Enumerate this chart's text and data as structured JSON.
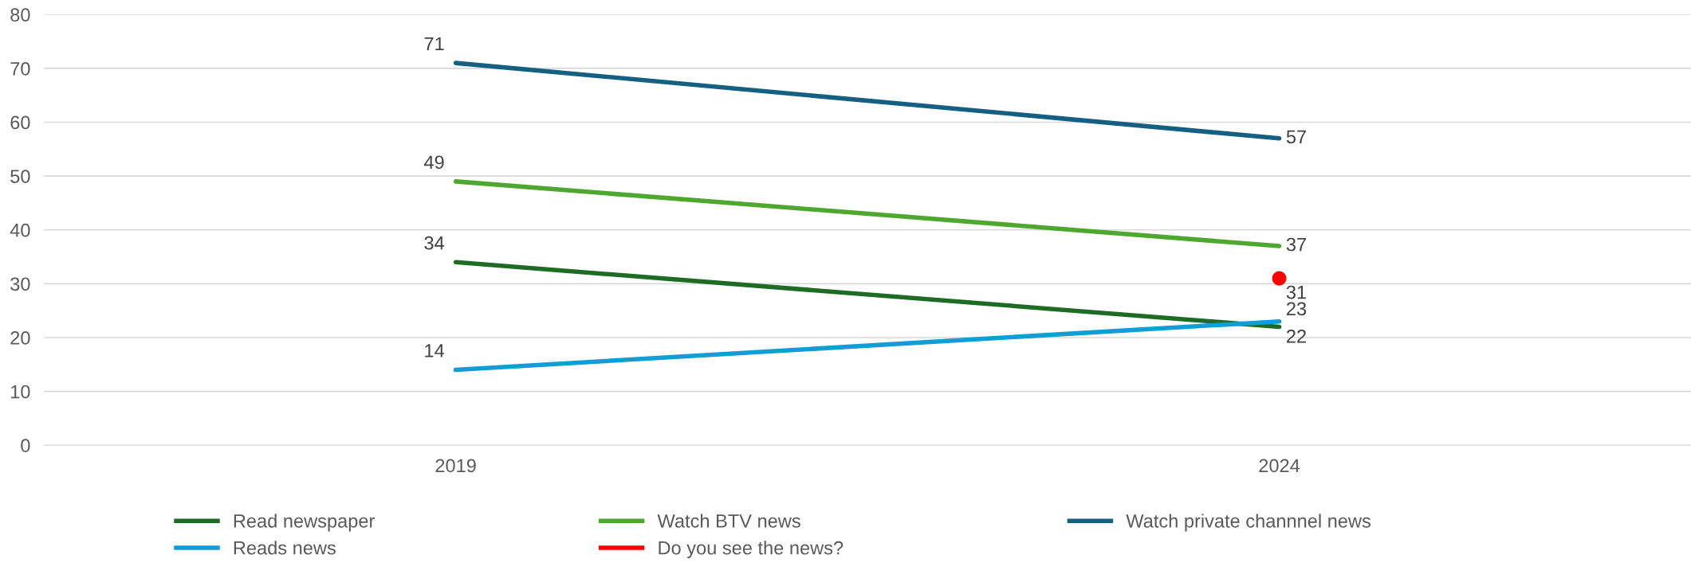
{
  "chart_data": {
    "type": "line",
    "categories": [
      "2019",
      "2024"
    ],
    "series": [
      {
        "name": "Read newspaper",
        "color": "#1e6b24",
        "values": [
          34,
          22
        ]
      },
      {
        "name": "Watch BTV news",
        "color": "#4ea72e",
        "values": [
          49,
          37
        ]
      },
      {
        "name": "Watch private channnel news",
        "color": "#156082",
        "values": [
          71,
          57
        ]
      },
      {
        "name": "Reads news",
        "color": "#0f9ed5",
        "values": [
          14,
          23
        ]
      },
      {
        "name": "Do you see the news?",
        "color": "#ff0000",
        "values": [
          null,
          31
        ],
        "marker": "circle"
      }
    ],
    "ylim": [
      0,
      80
    ],
    "yticks": [
      0,
      10,
      20,
      30,
      40,
      50,
      60,
      70,
      80
    ],
    "grid": "y",
    "legend": "bottom",
    "data_labels": true,
    "marker": "none"
  }
}
